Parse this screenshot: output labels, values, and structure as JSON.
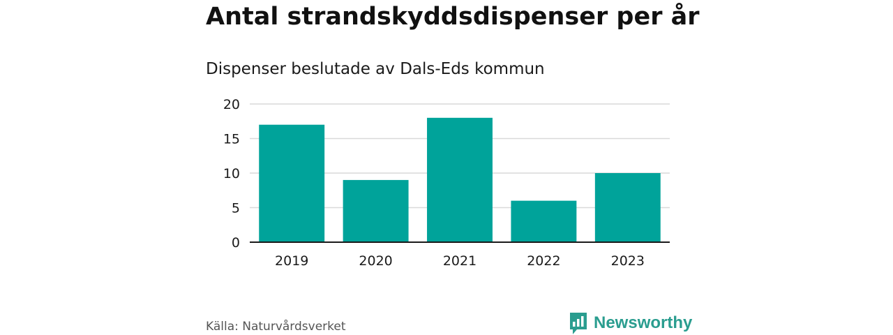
{
  "chart_data": {
    "type": "bar",
    "title": "Antal strandskyddsdispenser per år",
    "subtitle": "Dispenser beslutade av Dals-Eds kommun",
    "categories": [
      "2019",
      "2020",
      "2021",
      "2022",
      "2023"
    ],
    "values": [
      17,
      9,
      18,
      6,
      10
    ],
    "xlabel": "",
    "ylabel": "",
    "ylim": [
      0,
      20
    ],
    "yticks": [
      "0",
      "5",
      "10",
      "15",
      "20"
    ],
    "grid": true,
    "legend": "none"
  },
  "source": "Källa: Naturvårdsverket",
  "brand": {
    "name": "Newsworthy",
    "icon": "newsworthy-logo-icon"
  },
  "colors": {
    "bar": "#00a39a",
    "grid": "#d9d9d9",
    "axis": "#1a1a1a",
    "brand": "#2a9d8f"
  }
}
